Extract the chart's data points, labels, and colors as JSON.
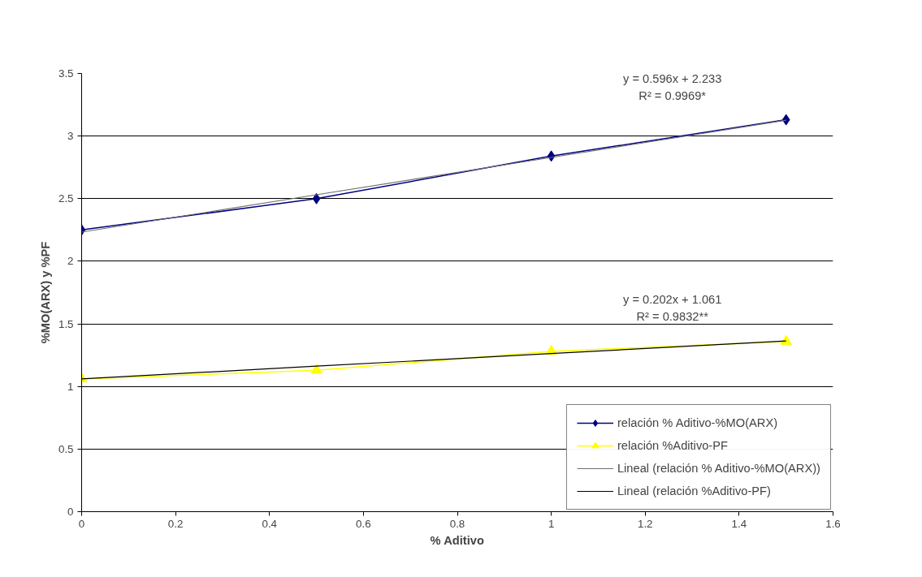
{
  "chart_data": {
    "type": "line",
    "xlabel": "% Aditivo",
    "ylabel": "%MO(ARX) y %PF",
    "x": [
      0,
      0.5,
      1,
      1.5
    ],
    "series": [
      {
        "name": "relación % Aditivo-%MO(ARX)",
        "color": "#000080",
        "values": [
          2.25,
          2.5,
          2.84,
          3.13
        ],
        "marker": "diamond"
      },
      {
        "name": "relación %Aditivo-PF",
        "color": "#ffff00",
        "values": [
          1.06,
          1.13,
          1.28,
          1.36
        ],
        "marker": "triangle"
      },
      {
        "name": "Lineal (relación % Aditivo-%MO(ARX))",
        "color": "#707070",
        "type": "line",
        "marker": "none",
        "values": [
          2.233,
          2.531,
          2.829,
          3.127
        ]
      },
      {
        "name": "Lineal (relación %Aditivo-PF)",
        "color": "#000000",
        "type": "line",
        "marker": "none",
        "values": [
          1.061,
          1.162,
          1.263,
          1.364
        ]
      }
    ],
    "annotations": [
      "y = 0.596x + 2.233\nR² = 0.9969*",
      "y = 0.202x + 1.061\nR² = 0.9832**"
    ],
    "xlim": [
      0,
      1.6
    ],
    "xticks": [
      0,
      0.2,
      0.4,
      0.6,
      0.8,
      1,
      1.2,
      1.4,
      1.6
    ],
    "ylim": [
      0,
      3.5
    ],
    "yticks": [
      0,
      0.5,
      1,
      1.5,
      2,
      2.5,
      3,
      3.5
    ],
    "grid": "y",
    "legend": "bottom right",
    "line_style": "solid"
  }
}
